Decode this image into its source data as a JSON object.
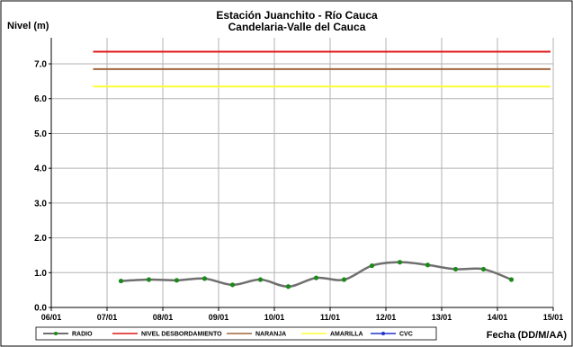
{
  "colors": {
    "radio": "#6f6f6f",
    "radio_marker": "#1a8a1a",
    "desbordamiento": "#e01818",
    "naranja": "#a0643c",
    "amarilla": "#ffff33",
    "cvc": "#2233cc",
    "grid": "#b3b3b3"
  },
  "chart_data": {
    "type": "line",
    "title": "Estación Juanchito - Río Cauca",
    "subtitle": "Candelaria-Valle del Cauca",
    "ylabel": "Nivel (m)",
    "xlabel": "Fecha (DD/M/AA)",
    "ylim": [
      0,
      7.75
    ],
    "xlim": [
      0,
      9
    ],
    "grid": true,
    "legend_position": "bottom",
    "yticks": [
      "0.0",
      "1.0",
      "2.0",
      "3.0",
      "4.0",
      "5.0",
      "6.0",
      "7.0"
    ],
    "ytick_values": [
      0,
      1,
      2,
      3,
      4,
      5,
      6,
      7
    ],
    "xticks": [
      "06/01",
      "07/01",
      "08/01",
      "09/01",
      "10/01",
      "11/01",
      "12/01",
      "13/01",
      "14/01",
      "15/01"
    ],
    "series": [
      {
        "name": "RADIO",
        "x": [
          1.25,
          1.75,
          2.25,
          2.75,
          3.25,
          3.75,
          4.25,
          4.75,
          5.25,
          5.75,
          6.25,
          6.75,
          7.25,
          7.75,
          8.25
        ],
        "y": [
          0.76,
          0.8,
          0.78,
          0.83,
          0.65,
          0.8,
          0.6,
          0.85,
          0.8,
          1.2,
          1.3,
          1.22,
          1.1,
          1.1,
          0.8
        ]
      },
      {
        "name": "NIVEL DESBORDAMIENTO",
        "x": [
          0.75,
          9.25
        ],
        "y": [
          7.35,
          7.35
        ]
      },
      {
        "name": "NARANJA",
        "x": [
          0.75,
          9.25
        ],
        "y": [
          6.85,
          6.85
        ]
      },
      {
        "name": "AMARILLA",
        "x": [
          0.75,
          9.25
        ],
        "y": [
          6.35,
          6.35
        ]
      },
      {
        "name": "CVC",
        "x": [],
        "y": []
      }
    ]
  }
}
